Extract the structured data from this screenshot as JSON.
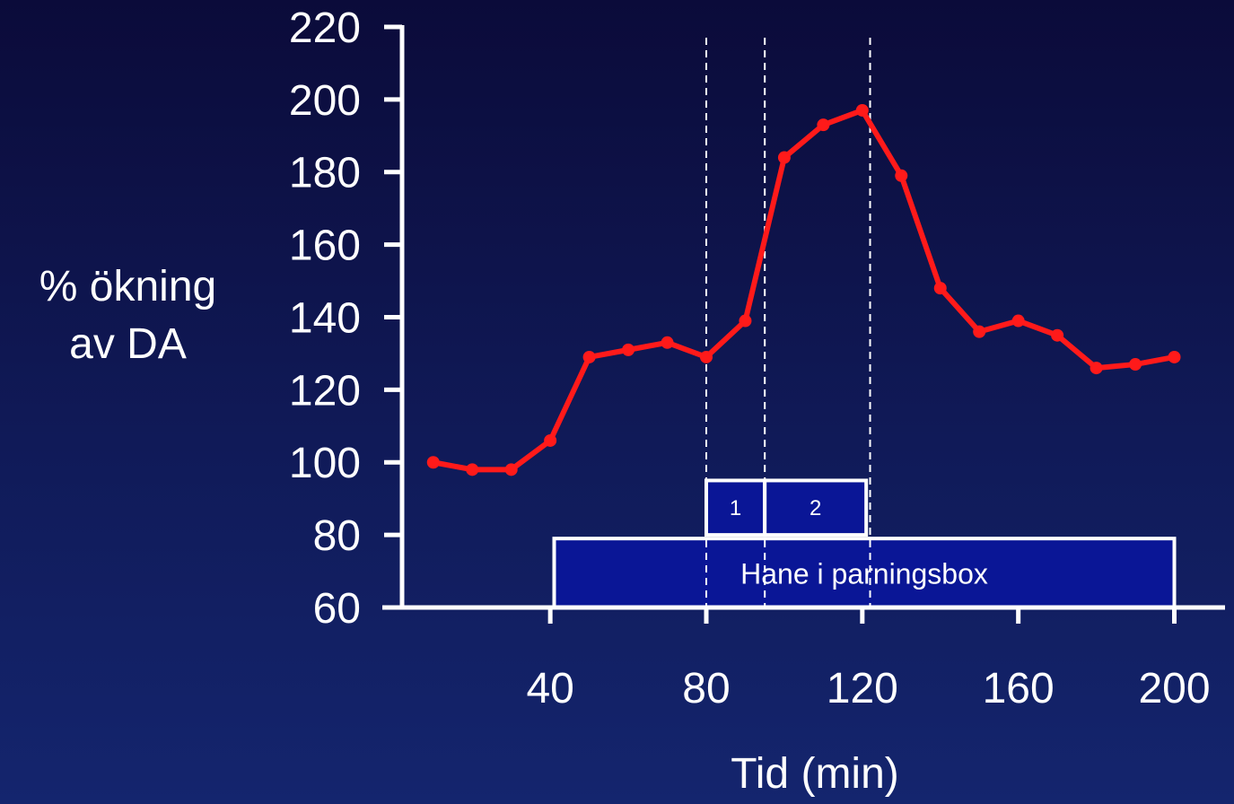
{
  "chart_data": {
    "type": "line",
    "xlabel": "Tid (min)",
    "ylabel_lines": [
      "% ökning",
      "av DA"
    ],
    "xlim": [
      2,
      200
    ],
    "ylim": [
      60,
      220
    ],
    "x_ticks": [
      40,
      80,
      120,
      160,
      200
    ],
    "y_ticks": [
      60,
      80,
      100,
      120,
      140,
      160,
      180,
      200,
      220
    ],
    "series": [
      {
        "color": "#ff1a1a",
        "x": [
          10,
          20,
          30,
          40,
          50,
          60,
          70,
          80,
          90,
          100,
          110,
          120,
          130,
          140,
          150,
          160,
          170,
          180,
          190,
          200
        ],
        "y": [
          100,
          98,
          98,
          106,
          129,
          131,
          133,
          129,
          139,
          184,
          193,
          197,
          179,
          148,
          136,
          139,
          135,
          126,
          127,
          129
        ]
      }
    ],
    "vlines": [
      80,
      95,
      122
    ],
    "bars": [
      {
        "label": "Hane i parningsbox",
        "x0": 41,
        "x1": 200,
        "y0": 60,
        "y1": 79
      },
      {
        "label": "1",
        "x0": 80,
        "x1": 95,
        "y0": 80,
        "y1": 95
      },
      {
        "label": "2",
        "x0": 95,
        "x1": 121,
        "y0": 80,
        "y1": 95
      }
    ],
    "colors": {
      "axis": "#ffffff",
      "line": "#ff1a1a",
      "bar_fill": "#0a1696",
      "bar_stroke": "#ffffff"
    },
    "grid": false,
    "legend": "none"
  }
}
